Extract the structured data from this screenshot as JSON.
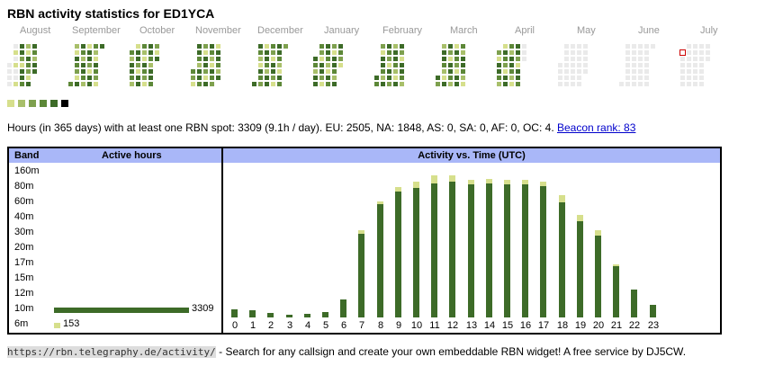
{
  "title": "RBN activity statistics for ED1YCA",
  "calendar": {
    "months": [
      "August",
      "September",
      "October",
      "November",
      "December",
      "January",
      "February",
      "March",
      "April",
      "May",
      "June",
      "July"
    ],
    "colors": {
      "empty": "#eaeaea",
      "l1": "#d6df8c",
      "l2": "#a8bf6a",
      "l3": "#7ea04e",
      "l4": "#5d8838",
      "l5": "#3d6b28",
      "max": "#000000",
      "today_border": "#cc0000"
    },
    "legend": [
      "#d6df8c",
      "#a8bf6a",
      "#7ea04e",
      "#5d8838",
      "#3d6b28",
      "#000000"
    ]
  },
  "summary": {
    "text": "Hours (in 365 days) with at least one RBN spot: 3309 (9.1h / day). EU: 2505, NA: 1848, AS: 0, SA: 0, AF: 0, OC: 4.",
    "link": "Beacon rank: 83"
  },
  "band_panel": {
    "header_band": "Band",
    "header_hours": "Active hours",
    "bands": [
      {
        "label": "160m",
        "hours": null
      },
      {
        "label": "80m",
        "hours": null
      },
      {
        "label": "60m",
        "hours": null
      },
      {
        "label": "40m",
        "hours": null
      },
      {
        "label": "30m",
        "hours": null
      },
      {
        "label": "20m",
        "hours": null
      },
      {
        "label": "17m",
        "hours": null
      },
      {
        "label": "15m",
        "hours": null
      },
      {
        "label": "12m",
        "hours": null
      },
      {
        "label": "10m",
        "hours": "3309"
      },
      {
        "label": "6m",
        "hours": "153"
      }
    ]
  },
  "chart_data": {
    "type": "bar",
    "title": "Activity vs. Time (UTC)",
    "categories": [
      "0",
      "1",
      "2",
      "3",
      "4",
      "5",
      "6",
      "7",
      "8",
      "9",
      "10",
      "11",
      "12",
      "13",
      "14",
      "15",
      "16",
      "17",
      "18",
      "19",
      "20",
      "21",
      "22",
      "23"
    ],
    "series": [
      {
        "values": [
          9,
          8,
          5,
          3,
          4,
          6,
          21,
          96,
          130,
          144,
          149,
          154,
          156,
          153,
          154,
          153,
          153,
          151,
          132,
          110,
          94,
          59,
          32,
          14
        ]
      },
      {
        "values": [
          0,
          0,
          0,
          0,
          0,
          0,
          0,
          4,
          3,
          5,
          7,
          9,
          7,
          5,
          5,
          5,
          5,
          5,
          8,
          7,
          6,
          2,
          0,
          0
        ]
      }
    ],
    "colors": [
      "#3d6b28",
      "#d6df8c"
    ],
    "grid": false
  },
  "footer": {
    "url": "https://rbn.telegraphy.de/activity/",
    "text": " - Search for any callsign and create your own embeddable RBN widget! A free service by DJ5CW."
  }
}
